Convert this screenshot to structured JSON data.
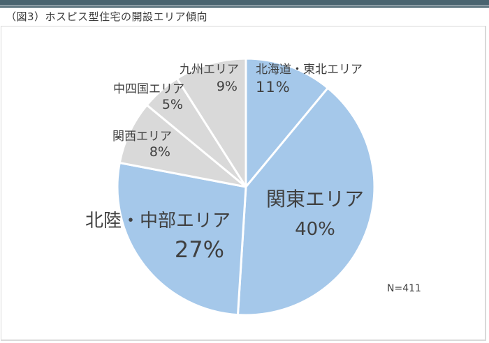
{
  "header": {
    "title": "（図3）ホスピス型住宅の開設エリア傾向",
    "bar_color": "#4a6470"
  },
  "chart_data": {
    "type": "pie",
    "title": "（図3）ホスピス型住宅の開設エリア傾向",
    "start_angle": "12 o'clock, clockwise",
    "categories": [
      "北海道・東北エリア",
      "関東エリア",
      "北陸・中部エリア",
      "関西エリア",
      "中四国エリア",
      "九州エリア"
    ],
    "values": [
      11,
      40,
      27,
      8,
      5,
      9
    ],
    "unit": "%",
    "colors": [
      "#a5c8ea",
      "#a5c8ea",
      "#a5c8ea",
      "#d9d9d9",
      "#d9d9d9",
      "#d9d9d9"
    ],
    "annotation": "N=411",
    "slices": [
      {
        "label": "北海道・東北エリア",
        "pct": "11%",
        "value": 11,
        "color": "#a5c8ea"
      },
      {
        "label": "関東エリア",
        "pct": "40%",
        "value": 40,
        "color": "#a5c8ea"
      },
      {
        "label": "北陸・中部エリア",
        "pct": "27%",
        "value": 27,
        "color": "#a5c8ea"
      },
      {
        "label": "関西エリア",
        "pct": "8%",
        "value": 8,
        "color": "#d9d9d9"
      },
      {
        "label": "中四国エリア",
        "pct": "5%",
        "value": 5,
        "color": "#d9d9d9"
      },
      {
        "label": "九州エリア",
        "pct": "9%",
        "value": 9,
        "color": "#d9d9d9"
      }
    ]
  }
}
